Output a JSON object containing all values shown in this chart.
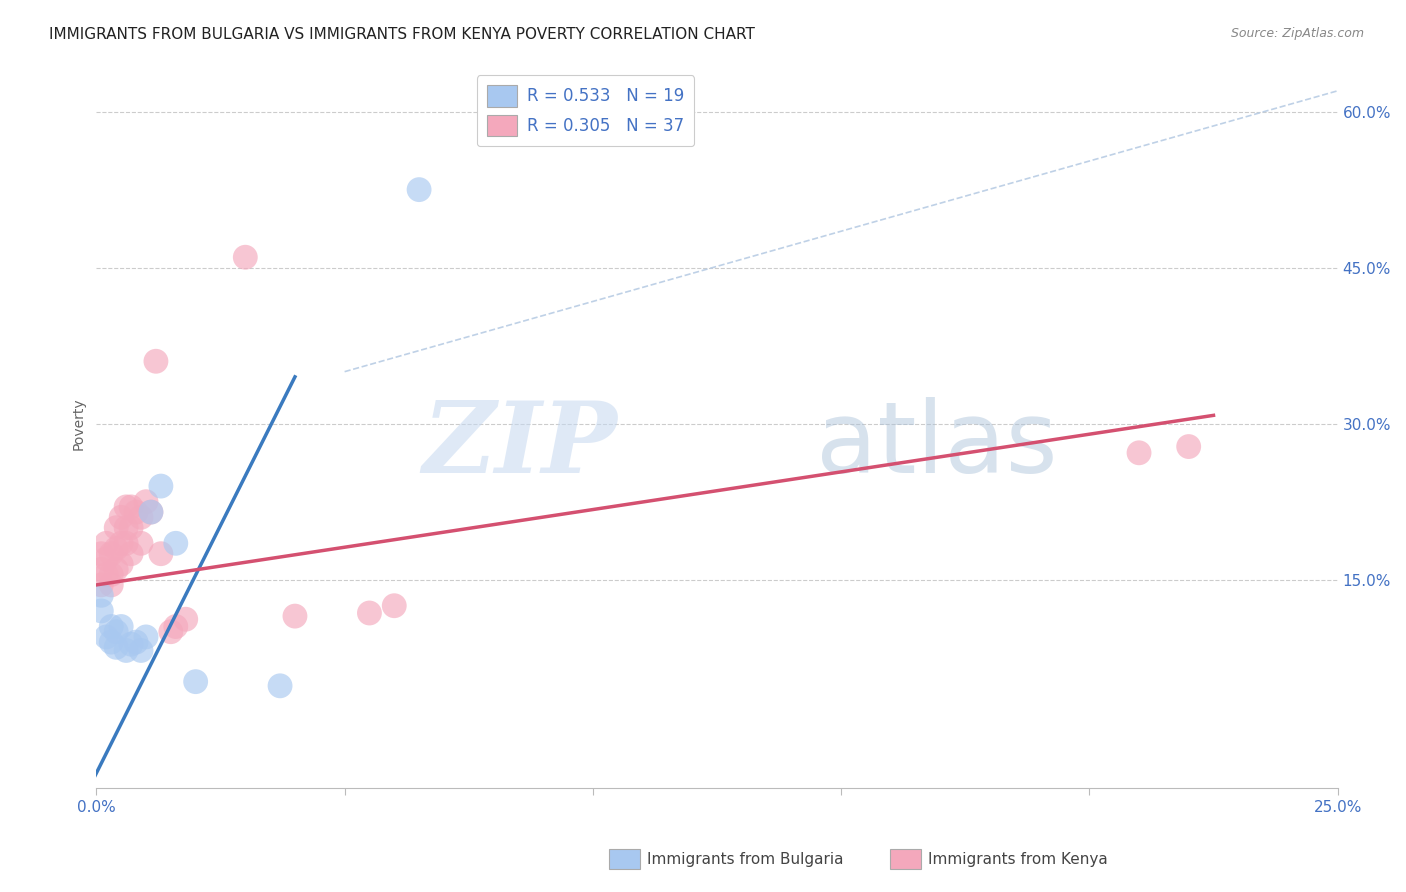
{
  "title": "IMMIGRANTS FROM BULGARIA VS IMMIGRANTS FROM KENYA POVERTY CORRELATION CHART",
  "source": "Source: ZipAtlas.com",
  "ylabel": "Poverty",
  "xlim": [
    0.0,
    0.25
  ],
  "ylim": [
    -0.05,
    0.65
  ],
  "xticks": [
    0.0,
    0.05,
    0.1,
    0.15,
    0.2,
    0.25
  ],
  "xticklabels": [
    "0.0%",
    "",
    "",
    "",
    "",
    "25.0%"
  ],
  "yticks_right": [
    0.15,
    0.3,
    0.45,
    0.6
  ],
  "ytick_right_labels": [
    "15.0%",
    "30.0%",
    "45.0%",
    "60.0%"
  ],
  "legend_r_bulgaria": "R = 0.533",
  "legend_n_bulgaria": "N = 19",
  "legend_r_kenya": "R = 0.305",
  "legend_n_kenya": "N = 37",
  "color_bulgaria": "#a8c8f0",
  "color_kenya": "#f4a8bc",
  "color_bulgaria_line": "#3a7abf",
  "color_kenya_line": "#d45070",
  "color_diag_line": "#b8cce4",
  "background_color": "#ffffff",
  "grid_color": "#cccccc",
  "title_fontsize": 11,
  "axis_label_fontsize": 10,
  "tick_fontsize": 11,
  "bulgaria_x": [
    0.001,
    0.001,
    0.002,
    0.003,
    0.003,
    0.004,
    0.004,
    0.005,
    0.006,
    0.007,
    0.008,
    0.009,
    0.01,
    0.011,
    0.013,
    0.016,
    0.02,
    0.037,
    0.065
  ],
  "bulgaria_y": [
    0.135,
    0.12,
    0.095,
    0.105,
    0.09,
    0.1,
    0.085,
    0.105,
    0.082,
    0.088,
    0.09,
    0.082,
    0.095,
    0.215,
    0.24,
    0.185,
    0.052,
    0.048,
    0.525
  ],
  "kenya_x": [
    0.001,
    0.001,
    0.001,
    0.002,
    0.002,
    0.002,
    0.003,
    0.003,
    0.003,
    0.004,
    0.004,
    0.004,
    0.005,
    0.005,
    0.005,
    0.006,
    0.006,
    0.006,
    0.007,
    0.007,
    0.007,
    0.008,
    0.009,
    0.009,
    0.01,
    0.011,
    0.012,
    0.013,
    0.015,
    0.016,
    0.018,
    0.03,
    0.04,
    0.055,
    0.06,
    0.21,
    0.22
  ],
  "kenya_y": [
    0.145,
    0.16,
    0.175,
    0.155,
    0.17,
    0.185,
    0.145,
    0.155,
    0.175,
    0.16,
    0.18,
    0.2,
    0.165,
    0.185,
    0.21,
    0.185,
    0.2,
    0.22,
    0.175,
    0.2,
    0.22,
    0.215,
    0.185,
    0.21,
    0.225,
    0.215,
    0.36,
    0.175,
    0.1,
    0.105,
    0.112,
    0.46,
    0.115,
    0.118,
    0.125,
    0.272,
    0.278
  ],
  "bulgaria_line_x": [
    -0.002,
    0.04
  ],
  "bulgaria_line_y": [
    -0.055,
    0.345
  ],
  "kenya_line_x": [
    0.0,
    0.225
  ],
  "kenya_line_y": [
    0.145,
    0.308
  ],
  "diag_line_x": [
    0.05,
    0.25
  ],
  "diag_line_y": [
    0.35,
    0.62
  ]
}
